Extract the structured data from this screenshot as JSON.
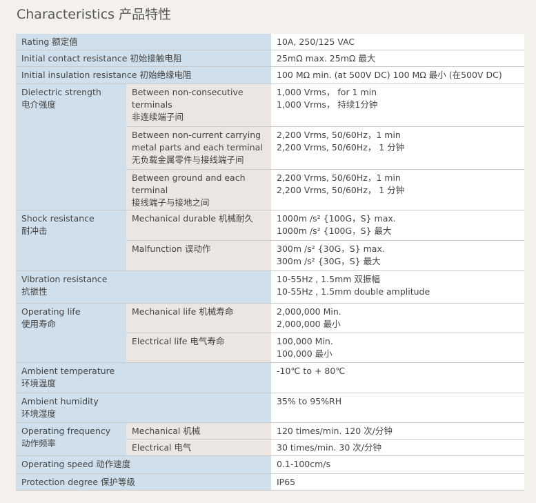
{
  "title": "Characteristics 产品特性",
  "table": {
    "rows": [
      {
        "label": [
          "Rating 额定值"
        ],
        "values": [
          "10A, 250/125 VAC"
        ]
      },
      {
        "label": [
          "Initial contact resistance  初始接触电阻"
        ],
        "values": [
          "25mΩ  max.   25mΩ  最大"
        ]
      },
      {
        "label": [
          "Initial insulation resistance  初始绝缘电阻"
        ],
        "values": [
          "100 MΩ  min. (at 500V DC)  100 MΩ  最小 (在500V DC)"
        ]
      },
      {
        "label": [
          "Dielectric strength",
          "电介强度"
        ],
        "items": [
          {
            "label": [
              "Between non-consecutive",
              "terminals",
              "非连续端子间"
            ],
            "values": [
              "1,000 Vrms， for 1 min",
              "1,000 Vrms， 持续1分钟"
            ]
          },
          {
            "label": [
              "Between non-current carrying",
              "metal parts and each terminal",
              "无负载金属零件与接线端子间"
            ],
            "values": [
              "2,200 Vrms, 50/60Hz，1 min",
              "2,200 Vrms, 50/60Hz， 1 分钟"
            ]
          },
          {
            "label": [
              "Between ground and each",
              "terminal",
              "接线端子与接地之间"
            ],
            "values": [
              "2,200 Vrms, 50/60Hz，1 min",
              "2,200 Vrms, 50/60Hz， 1 分钟"
            ]
          }
        ]
      },
      {
        "label": [
          "Shock resistance",
          "耐冲击"
        ],
        "items": [
          {
            "label": [
              "Mechanical durable 机械耐久"
            ],
            "values": [
              "1000m /s² {100G，S} max.",
              "1000m /s² {100G，S} 最大"
            ]
          },
          {
            "label": [
              "Malfunction 误动作"
            ],
            "values": [
              "300m /s² {30G，S} max.",
              "300m /s² {30G，S} 最大"
            ]
          }
        ]
      },
      {
        "label": [
          "Vibration resistance",
          "抗振性"
        ],
        "values": [
          "10-55Hz , 1.5mm 双振幅",
          "10-55Hz , 1.5mm double amplitude"
        ]
      },
      {
        "label": [
          "Operating life",
          "使用寿命"
        ],
        "items": [
          {
            "label": [
              "Mechanical life 机械寿命"
            ],
            "values": [
              "2,000,000 Min.",
              "2,000,000 最小"
            ]
          },
          {
            "label": [
              "Electrical life 电气寿命"
            ],
            "values": [
              "100,000  Min.",
              "100,000  最小"
            ]
          }
        ]
      },
      {
        "label": [
          "Ambient temperature",
          "环境温度"
        ],
        "values": [
          "-10℃ to + 80℃"
        ]
      },
      {
        "label": [
          "Ambient humidity",
          "环境湿度"
        ],
        "values": [
          "35% to 95%RH"
        ]
      },
      {
        "label": [
          "Operating frequency",
          "动作频率"
        ],
        "items": [
          {
            "label": [
              "Mechanical 机械"
            ],
            "values": [
              "120 times/min. 120 次/分钟"
            ]
          },
          {
            "label": [
              "Electrical 电气"
            ],
            "values": [
              "30 times/min. 30 次/分钟"
            ]
          }
        ]
      },
      {
        "label": [
          "Operating speed  动作速度"
        ],
        "values": [
          "0.1-100cm/s"
        ]
      },
      {
        "label": [
          "Protection degree 保护等级"
        ],
        "values": [
          "IP65"
        ]
      }
    ]
  }
}
